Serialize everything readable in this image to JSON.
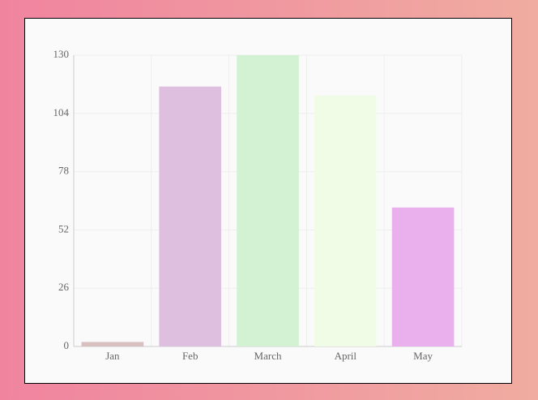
{
  "chart_data": {
    "type": "bar",
    "categories": [
      "Jan",
      "Feb",
      "March",
      "April",
      "May"
    ],
    "values": [
      2,
      116,
      130,
      112,
      62
    ],
    "colors": [
      "#d9c0c0",
      "#dfbfdf",
      "#d3f2d3",
      "#f0fce6",
      "#eab0ee"
    ],
    "ylim": [
      0,
      130
    ],
    "yticks": [
      0,
      26,
      52,
      78,
      104,
      130
    ],
    "grid": true
  }
}
